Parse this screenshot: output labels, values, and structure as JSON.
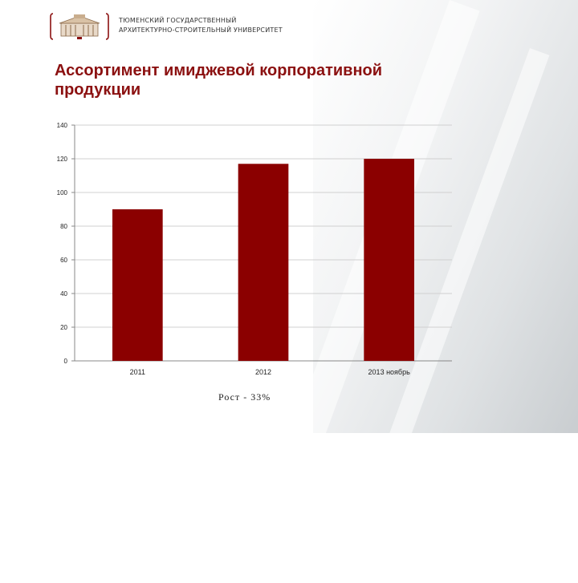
{
  "header": {
    "org_line1": "ТЮМЕНСКИЙ ГОСУДАРСТВЕННЫЙ",
    "org_line2": "АРХИТЕКТУРНО-СТРОИТЕЛЬНЫЙ УНИВЕРСИТЕТ",
    "logo": "university-building-logo"
  },
  "slide": {
    "title": "Ассортимент имиджевой корпоративной продукции",
    "caption": "Рост - 33%"
  },
  "colors": {
    "bar": "#8b0000",
    "title": "#8b1010",
    "grid": "#d0d0d0"
  },
  "chart_data": {
    "type": "bar",
    "categories": [
      "2011",
      "2012",
      "2013 ноябрь"
    ],
    "values": [
      90,
      117,
      120
    ],
    "yticks": [
      0,
      20,
      40,
      60,
      80,
      100,
      120,
      140
    ],
    "ylim": [
      0,
      140
    ],
    "title": "",
    "xlabel": "",
    "ylabel": "",
    "grid": true,
    "legend": "none"
  }
}
